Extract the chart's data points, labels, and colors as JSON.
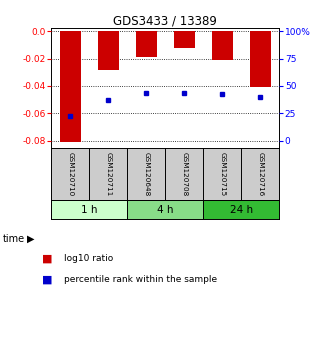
{
  "title": "GDS3433 / 13389",
  "samples": [
    "GSM120710",
    "GSM120711",
    "GSM120648",
    "GSM120708",
    "GSM120715",
    "GSM120716"
  ],
  "groups": [
    {
      "label": "1 h",
      "samples": [
        "GSM120710",
        "GSM120711"
      ],
      "color": "#ccffcc"
    },
    {
      "label": "4 h",
      "samples": [
        "GSM120648",
        "GSM120708"
      ],
      "color": "#88dd88"
    },
    {
      "label": "24 h",
      "samples": [
        "GSM120715",
        "GSM120716"
      ],
      "color": "#33bb33"
    }
  ],
  "log10_ratio": [
    -0.081,
    -0.028,
    -0.019,
    -0.012,
    -0.021,
    -0.041
  ],
  "percentile_rank": [
    23,
    37,
    44,
    44,
    43,
    40
  ],
  "ylim_left": [
    -0.085,
    0.002
  ],
  "ylim_right": [
    -0.5,
    105
  ],
  "yticks_left": [
    0.0,
    -0.02,
    -0.04,
    -0.06,
    -0.08
  ],
  "yticks_right": [
    0,
    25,
    50,
    75,
    100
  ],
  "bar_color": "#cc0000",
  "dot_color": "#0000cc",
  "bg_color": "#ffffff",
  "sample_bg": "#cccccc",
  "bar_width": 0.55
}
